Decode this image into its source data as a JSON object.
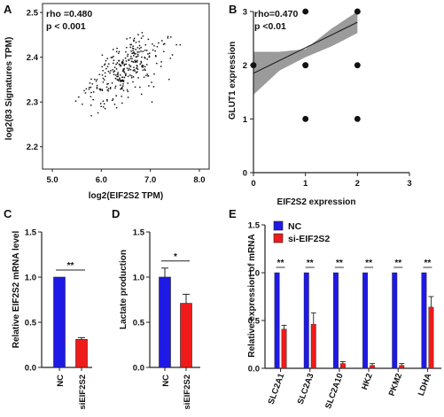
{
  "panels": [
    {
      "label": "A",
      "chart_data": {
        "type": "scatter",
        "xlabel": "log2(EIF2S2 TPM)",
        "ylabel": "log2(83 Signatures TPM)",
        "xlim": [
          4.8,
          8.2
        ],
        "ylim": [
          2.15,
          2.52
        ],
        "xticks": [
          "5.0",
          "6.0",
          "7.0",
          "8.0"
        ],
        "yticks": [
          "2.2",
          "2.3",
          "2.4",
          "2.5"
        ],
        "annotation": [
          "rho =0.480",
          "p < 0.001"
        ],
        "point_count": 300,
        "trend": {
          "slope": 0.06,
          "intercept": 1.98,
          "noise_sd": 0.04
        },
        "x_center": 6.5,
        "x_sd": 0.55,
        "grid": false,
        "marker_color": "#111111"
      }
    },
    {
      "label": "B",
      "chart_data": {
        "type": "scatter",
        "xlabel": "EIF2S2 expression",
        "ylabel": "GLUT1 expression",
        "xlim": [
          0,
          3
        ],
        "ylim": [
          0,
          3
        ],
        "xticks": [
          "0",
          "1",
          "2",
          "3"
        ],
        "yticks": [
          "0",
          "1",
          "2",
          "3"
        ],
        "annotation": [
          "rho=0.470",
          "p <0.01"
        ],
        "x": [
          0,
          1,
          1,
          1,
          1,
          2,
          2,
          2,
          2
        ],
        "y": [
          2,
          3,
          2,
          1,
          2,
          3,
          2,
          1,
          3
        ],
        "fit": {
          "x0": 0,
          "y0": 1.85,
          "x1": 2,
          "y1": 2.8
        },
        "band": {
          "x": [
            0,
            0.5,
            1,
            1.5,
            2
          ],
          "upper": [
            2.25,
            2.25,
            2.3,
            2.68,
            3.0
          ],
          "lower": [
            1.45,
            1.9,
            2.15,
            2.35,
            2.6
          ]
        },
        "band_color": "#8a8a8a",
        "grid": false
      }
    },
    {
      "label": "C",
      "chart_data": {
        "type": "bar",
        "categories": [
          "NC",
          "siEIF2S2"
        ],
        "values": [
          1.0,
          0.31
        ],
        "errors": [
          0.0,
          0.02
        ],
        "colors": [
          "#1f19e6",
          "#ef1b1b"
        ],
        "ylabel": "Relative EIF2S2 mRNA level",
        "ylim": [
          0,
          1.5
        ],
        "yticks": [
          "0.0",
          "0.5",
          "1.0",
          "1.5"
        ],
        "significance": "**"
      }
    },
    {
      "label": "D",
      "chart_data": {
        "type": "bar",
        "categories": [
          "NC",
          "siEIF2S2"
        ],
        "values": [
          1.0,
          0.71
        ],
        "errors": [
          0.1,
          0.1
        ],
        "colors": [
          "#1f19e6",
          "#ef1b1b"
        ],
        "ylabel": "Lactate production",
        "ylim": [
          0,
          1.5
        ],
        "yticks": [
          "0.0",
          "0.5",
          "1.0",
          "1.5"
        ],
        "significance": "*"
      }
    },
    {
      "label": "E",
      "chart_data": {
        "type": "bar",
        "categories": [
          "SLC2A1",
          "SLC2A3",
          "SLC2A10",
          "HK2",
          "PKM2",
          "LDHA"
        ],
        "series": [
          {
            "name": "NC",
            "values": [
              1.0,
              1.0,
              1.0,
              1.0,
              1.0,
              1.0
            ],
            "errors": [
              0,
              0,
              0,
              0,
              0,
              0
            ],
            "color": "#1f19e6"
          },
          {
            "name": "si-EIF2S2",
            "values": [
              0.41,
              0.46,
              0.05,
              0.03,
              0.03,
              0.64
            ],
            "errors": [
              0.04,
              0.12,
              0.02,
              0.02,
              0.02,
              0.11
            ],
            "color": "#ef1b1b"
          }
        ],
        "ylabel": "Relative expression of mRNA",
        "ylim": [
          0,
          1.5
        ],
        "yticks": [
          "0.0",
          "0.5",
          "1.0",
          "1.5"
        ],
        "significance": [
          "**",
          "**",
          "**",
          "**",
          "**",
          "**"
        ],
        "legend_position": "top-left"
      }
    }
  ]
}
